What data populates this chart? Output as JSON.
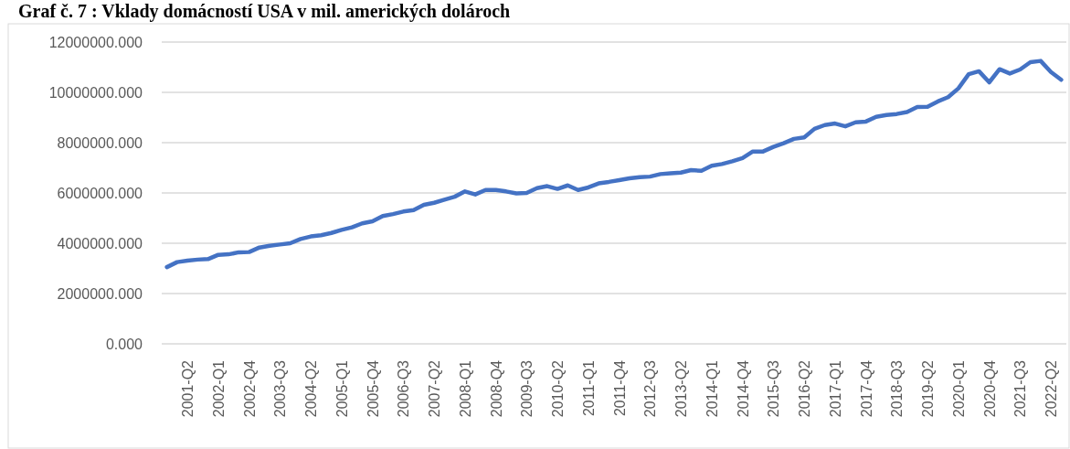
{
  "chart_data": {
    "type": "line",
    "title": "Graf č. 7 : Vklady domácností USA v mil. amerických dolároch",
    "categories": [
      null,
      null,
      "2001-Q2",
      null,
      null,
      "2002-Q1",
      null,
      null,
      "2002-Q4",
      null,
      null,
      "2003-Q3",
      null,
      null,
      "2004-Q2",
      null,
      null,
      "2005-Q1",
      null,
      null,
      "2005-Q4",
      null,
      null,
      "2006-Q3",
      null,
      null,
      "2007-Q2",
      null,
      null,
      "2008-Q1",
      null,
      null,
      "2008-Q4",
      null,
      null,
      "2009-Q3",
      null,
      null,
      "2010-Q2",
      null,
      null,
      "2011-Q1",
      null,
      null,
      "2011-Q4",
      null,
      null,
      "2012-Q3",
      null,
      null,
      "2013-Q2",
      null,
      null,
      "2014-Q1",
      null,
      null,
      "2014-Q4",
      null,
      null,
      "2015-Q3",
      null,
      null,
      "2016-Q2",
      null,
      null,
      "2017-Q1",
      null,
      null,
      "2017-Q4",
      null,
      null,
      "2018-Q3",
      null,
      null,
      "2019-Q2",
      null,
      null,
      "2020-Q1",
      null,
      null,
      "2020-Q4",
      null,
      null,
      "2021-Q3",
      null,
      null,
      "2022-Q2",
      null
    ],
    "series": [
      {
        "color": "#4472c4",
        "values": [
          3050000,
          3250000,
          3310000,
          3350000,
          3370000,
          3540000,
          3560000,
          3640000,
          3650000,
          3830000,
          3900000,
          3950000,
          4000000,
          4170000,
          4270000,
          4320000,
          4410000,
          4530000,
          4630000,
          4790000,
          4870000,
          5080000,
          5160000,
          5260000,
          5320000,
          5530000,
          5610000,
          5730000,
          5850000,
          6060000,
          5940000,
          6120000,
          6120000,
          6060000,
          5980000,
          6000000,
          6190000,
          6270000,
          6160000,
          6300000,
          6120000,
          6220000,
          6380000,
          6440000,
          6510000,
          6580000,
          6630000,
          6650000,
          6750000,
          6780000,
          6810000,
          6910000,
          6880000,
          7080000,
          7150000,
          7260000,
          7390000,
          7650000,
          7650000,
          7830000,
          7980000,
          8150000,
          8210000,
          8550000,
          8700000,
          8760000,
          8650000,
          8810000,
          8840000,
          9030000,
          9100000,
          9140000,
          9220000,
          9420000,
          9430000,
          9640000,
          9810000,
          10160000,
          10720000,
          10840000,
          10400000,
          10920000,
          10750000,
          10910000,
          11200000,
          11250000,
          10810000,
          10500000
        ]
      }
    ],
    "ylim": [
      0,
      12000000
    ],
    "yticks": [
      {
        "value": 0,
        "label": "0.000"
      },
      {
        "value": 2000000,
        "label": "2000000.000"
      },
      {
        "value": 4000000,
        "label": "4000000.000"
      },
      {
        "value": 6000000,
        "label": "6000000.000"
      },
      {
        "value": 8000000,
        "label": "8000000.000"
      },
      {
        "value": 10000000,
        "label": "10000000.000"
      },
      {
        "value": 12000000,
        "label": "12000000.000"
      }
    ],
    "grid": "y",
    "marker": "none",
    "line_style": "solid"
  }
}
